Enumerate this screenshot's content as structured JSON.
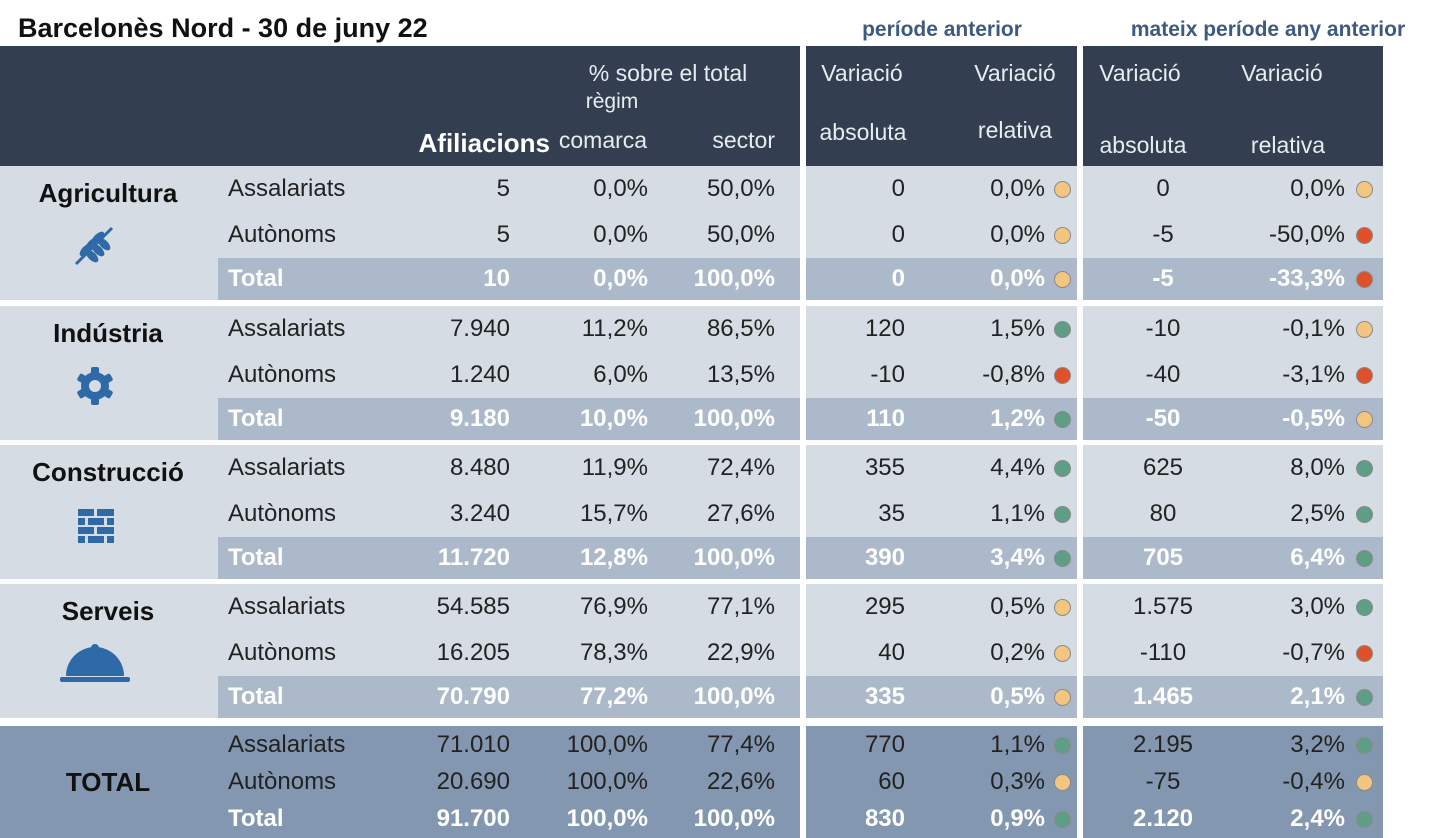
{
  "title": "Barcelonès Nord - 30 de juny 22",
  "group_headers": [
    "període anterior",
    "mateix període any anterior"
  ],
  "header": {
    "share": "% sobre el total",
    "regime": "règim",
    "affiliations": "Afiliacions",
    "county": "comarca",
    "sector": "sector",
    "previous_period": [
      [
        "Variació",
        "absoluta"
      ],
      [
        "Variació",
        "relativa"
      ]
    ],
    "previous_year": [
      [
        "Variació",
        "absoluta"
      ],
      [
        "Variació",
        "relativa"
      ]
    ]
  },
  "sections": [
    {
      "name": "Agricultura",
      "rows": [
        {
          "label": "Assalariats",
          "values": [
            "5",
            "0,0%",
            "50,0%",
            "0",
            "0,0%",
            "0",
            "0,0%"
          ],
          "status": [
            "yellow",
            "yellow"
          ]
        },
        {
          "label": "Autònoms",
          "values": [
            "5",
            "0,0%",
            "50,0%",
            "0",
            "0,0%",
            "-5",
            "-50,0%"
          ],
          "status": [
            "yellow",
            "red"
          ]
        },
        {
          "label": "Total",
          "values": [
            "10",
            "0,0%",
            "100,0%",
            "0",
            "0,0%",
            "-5",
            "-33,3%"
          ],
          "status": [
            "yellow",
            "red"
          ]
        }
      ]
    },
    {
      "name": "Indústria",
      "rows": [
        {
          "label": "Assalariats",
          "values": [
            "7.940",
            "11,2%",
            "86,5%",
            "120",
            "1,5%",
            "-10",
            "-0,1%"
          ],
          "status": [
            "green",
            "yellow"
          ]
        },
        {
          "label": "Autònoms",
          "values": [
            "1.240",
            "6,0%",
            "13,5%",
            "-10",
            "-0,8%",
            "-40",
            "-3,1%"
          ],
          "status": [
            "red",
            "red"
          ]
        },
        {
          "label": "Total",
          "values": [
            "9.180",
            "10,0%",
            "100,0%",
            "110",
            "1,2%",
            "-50",
            "-0,5%"
          ],
          "status": [
            "green",
            "yellow"
          ]
        }
      ]
    },
    {
      "name": "Construcció",
      "rows": [
        {
          "label": "Assalariats",
          "values": [
            "8.480",
            "11,9%",
            "72,4%",
            "355",
            "4,4%",
            "625",
            "8,0%"
          ],
          "status": [
            "green",
            "green"
          ]
        },
        {
          "label": "Autònoms",
          "values": [
            "3.240",
            "15,7%",
            "27,6%",
            "35",
            "1,1%",
            "80",
            "2,5%"
          ],
          "status": [
            "green",
            "green"
          ]
        },
        {
          "label": "Total",
          "values": [
            "11.720",
            "12,8%",
            "100,0%",
            "390",
            "3,4%",
            "705",
            "6,4%"
          ],
          "status": [
            "green",
            "green"
          ]
        }
      ]
    },
    {
      "name": "Serveis",
      "rows": [
        {
          "label": "Assalariats",
          "values": [
            "54.585",
            "76,9%",
            "77,1%",
            "295",
            "0,5%",
            "1.575",
            "3,0%"
          ],
          "status": [
            "yellow",
            "green"
          ]
        },
        {
          "label": "Autònoms",
          "values": [
            "16.205",
            "78,3%",
            "22,9%",
            "40",
            "0,2%",
            "-110",
            "-0,7%"
          ],
          "status": [
            "yellow",
            "red"
          ]
        },
        {
          "label": "Total",
          "values": [
            "70.790",
            "77,2%",
            "100,0%",
            "335",
            "0,5%",
            "1.465",
            "2,1%"
          ],
          "status": [
            "yellow",
            "green"
          ]
        }
      ]
    },
    {
      "name": "TOTAL",
      "rows": [
        {
          "label": "Assalariats",
          "values": [
            "71.010",
            "100,0%",
            "77,4%",
            "770",
            "1,1%",
            "2.195",
            "3,2%"
          ],
          "status": [
            "green",
            "green"
          ]
        },
        {
          "label": "Autònoms",
          "values": [
            "20.690",
            "100,0%",
            "22,6%",
            "60",
            "0,3%",
            "-75",
            "-0,4%"
          ],
          "status": [
            "yellow",
            "yellow"
          ]
        },
        {
          "label": "Total",
          "values": [
            "91.700",
            "100,0%",
            "100,0%",
            "830",
            "0,9%",
            "2.120",
            "2,4%"
          ],
          "status": [
            "green",
            "green"
          ]
        }
      ]
    }
  ]
}
